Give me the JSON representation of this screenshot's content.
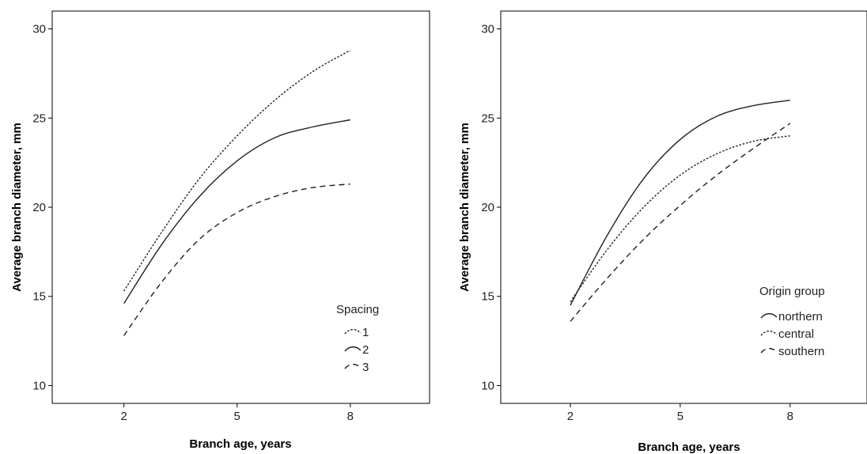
{
  "chart_data": [
    {
      "type": "line",
      "xlabel": "Branch age, years",
      "ylabel": "Average branch diameter, mm",
      "xlim": [
        0.1,
        10.1
      ],
      "ylim": [
        9,
        31
      ],
      "xticks": [
        2,
        5,
        8
      ],
      "yticks": [
        10,
        15,
        20,
        25,
        30
      ],
      "legend": {
        "title": "Spacing",
        "position": "bottom-right"
      },
      "x": [
        2,
        3,
        4,
        5,
        6,
        7,
        8
      ],
      "series": [
        {
          "name": "1",
          "style": "dotted",
          "values": [
            15.3,
            18.6,
            21.6,
            24.0,
            26.0,
            27.6,
            28.8
          ]
        },
        {
          "name": "2",
          "style": "solid",
          "values": [
            14.6,
            17.9,
            20.6,
            22.6,
            23.9,
            24.5,
            24.9
          ]
        },
        {
          "name": "3",
          "style": "dashed",
          "values": [
            12.8,
            15.8,
            18.2,
            19.7,
            20.6,
            21.1,
            21.3
          ]
        }
      ]
    },
    {
      "type": "line",
      "xlabel": "Branch age, years",
      "ylabel": "Average  branch diameter, mm",
      "xlim": [
        0.1,
        10.1
      ],
      "ylim": [
        9,
        31
      ],
      "xticks": [
        2,
        5,
        8
      ],
      "yticks": [
        10,
        15,
        20,
        25,
        30
      ],
      "legend": {
        "title": "Origin group",
        "position": "bottom-right"
      },
      "x": [
        2,
        3,
        4,
        5,
        6,
        7,
        8
      ],
      "series": [
        {
          "name": "northern",
          "style": "solid",
          "values": [
            14.5,
            18.4,
            21.6,
            23.8,
            25.1,
            25.7,
            26.0
          ]
        },
        {
          "name": "central",
          "style": "dotted",
          "values": [
            14.7,
            17.6,
            20.0,
            21.8,
            23.0,
            23.7,
            24.0
          ]
        },
        {
          "name": "southern",
          "style": "dashed",
          "values": [
            13.6,
            16.0,
            18.2,
            20.1,
            21.8,
            23.3,
            24.7
          ]
        }
      ]
    }
  ]
}
